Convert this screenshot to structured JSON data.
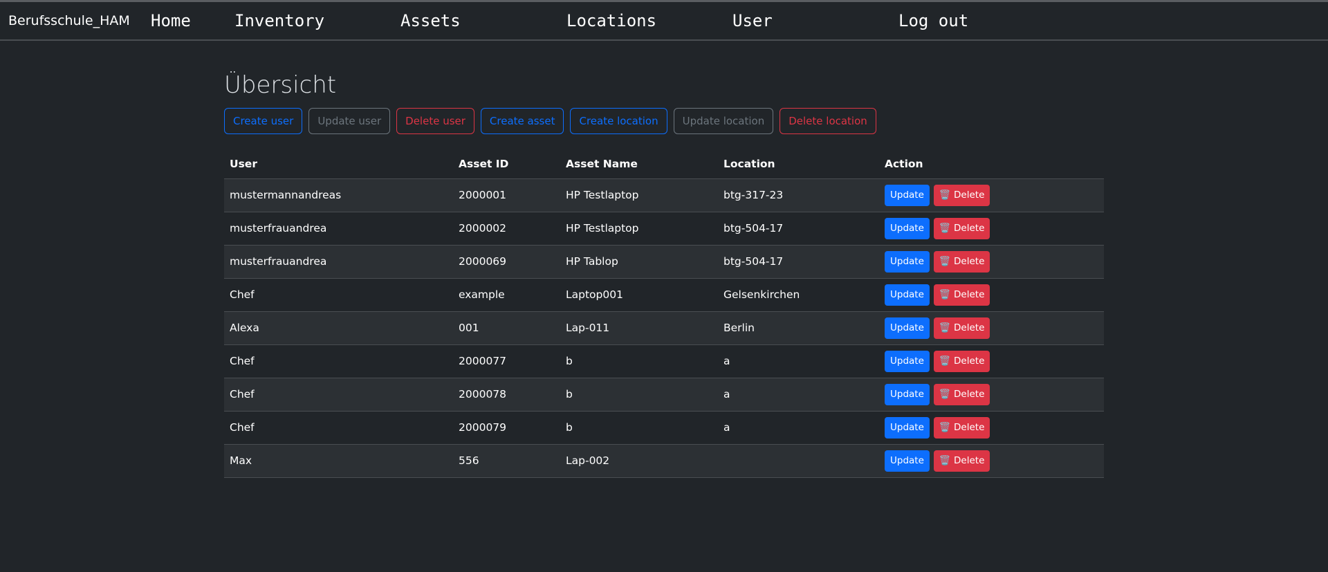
{
  "nav": {
    "brand": "Berufsschule_HAM",
    "links": [
      "Home",
      "Inventory",
      "Assets",
      "Locations",
      "User",
      "Log out"
    ]
  },
  "page": {
    "title": "Übersicht"
  },
  "actions": [
    {
      "label": "Create user",
      "variant": "blue"
    },
    {
      "label": "Update user",
      "variant": "grey"
    },
    {
      "label": "Delete user",
      "variant": "red"
    },
    {
      "label": "Create asset",
      "variant": "blue"
    },
    {
      "label": "Create location",
      "variant": "blue"
    },
    {
      "label": "Update location",
      "variant": "grey"
    },
    {
      "label": "Delete location",
      "variant": "red"
    }
  ],
  "table": {
    "headers": [
      "User",
      "Asset ID",
      "Asset Name",
      "Location",
      "Action"
    ],
    "update_label": "Update",
    "delete_label": "Delete",
    "delete_icon": "🗑️",
    "rows": [
      [
        "mustermannandreas",
        "2000001",
        "HP Testlaptop",
        "btg-317-23"
      ],
      [
        "musterfrauandrea",
        "2000002",
        "HP Testlaptop",
        "btg-504-17"
      ],
      [
        "musterfrauandrea",
        "2000069",
        "HP Tablop",
        "btg-504-17"
      ],
      [
        "Chef",
        "example",
        "Laptop001",
        "Gelsenkirchen"
      ],
      [
        "Alexa",
        "001",
        "Lap-011",
        "Berlin"
      ],
      [
        "Chef",
        "2000077",
        "b",
        "a"
      ],
      [
        "Chef",
        "2000078",
        "b",
        "a"
      ],
      [
        "Chef",
        "2000079",
        "b",
        "a"
      ],
      [
        "Max",
        "556",
        "Lap-002",
        ""
      ]
    ]
  },
  "colors": {
    "primary": "#0d6efd",
    "secondary": "#6c757d",
    "danger": "#dc3545",
    "background": "#212529"
  }
}
